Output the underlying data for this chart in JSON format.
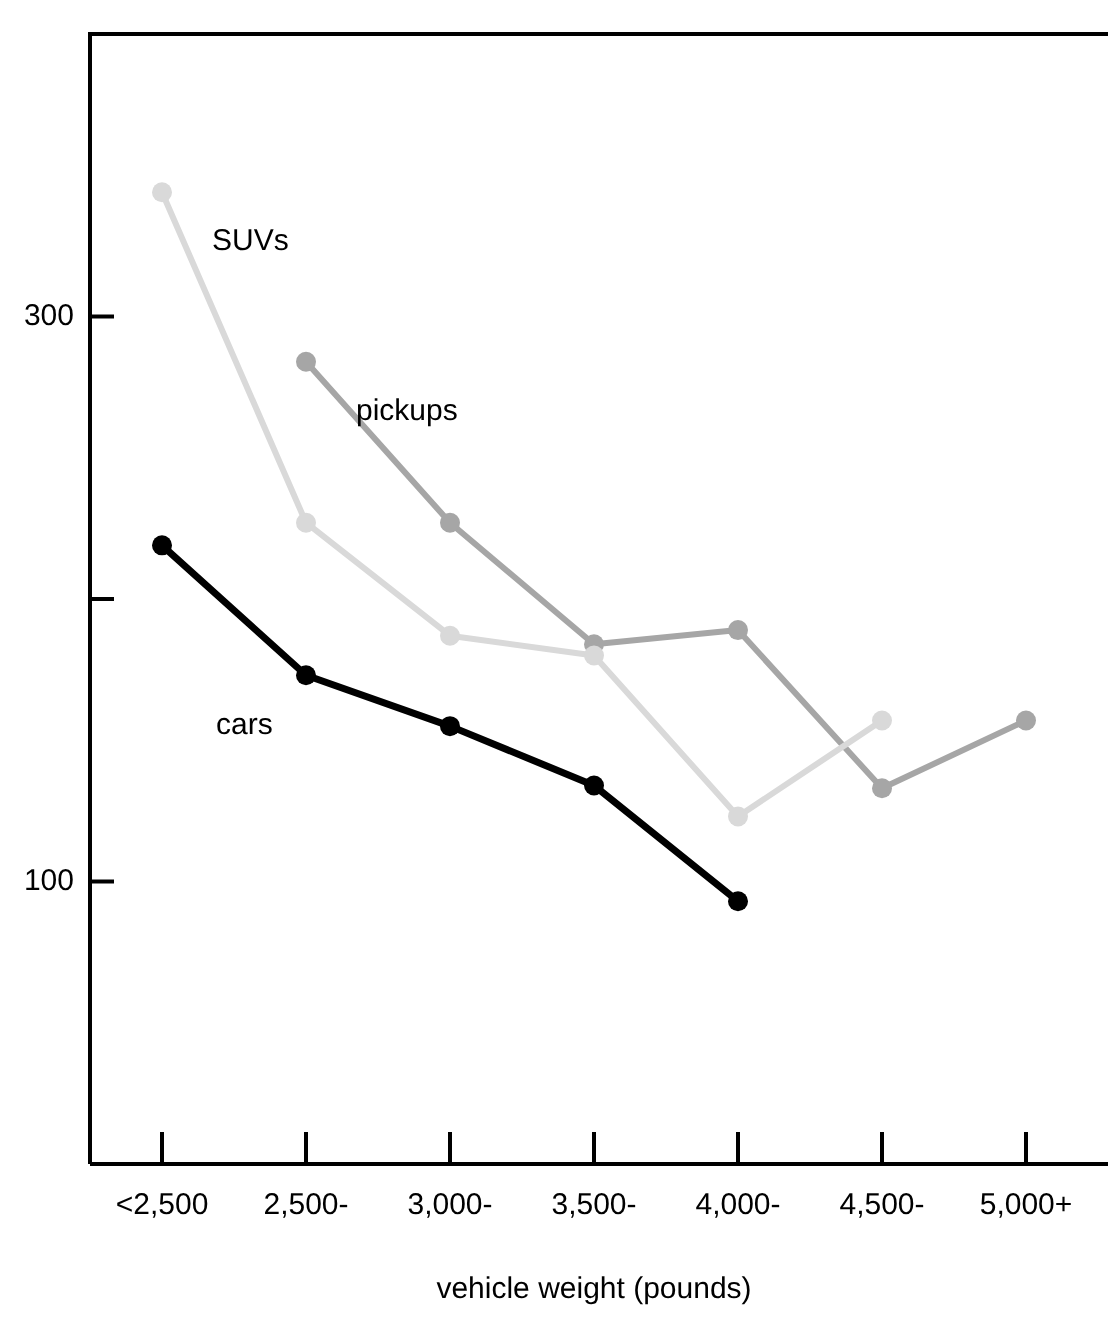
{
  "chart_data": {
    "type": "line",
    "xlabel": "vehicle weight (pounds)",
    "categories": [
      "<2,500",
      "2,500-",
      "3,000-",
      "3,500-",
      "4,000-",
      "4,500-",
      "5,000+"
    ],
    "series": [
      {
        "name": "SUVs",
        "color": "#d9d9d9",
        "values": [
          344,
          227,
          187,
          180,
          123,
          157,
          null
        ]
      },
      {
        "name": "pickups",
        "color": "#a6a6a6",
        "values": [
          null,
          284,
          227,
          184,
          189,
          133,
          157
        ]
      },
      {
        "name": "cars",
        "color": "#000000",
        "values": [
          219,
          173,
          155,
          134,
          93,
          null,
          null
        ]
      }
    ],
    "ylim": [
      0,
      400
    ],
    "yticks": [
      100,
      {
        "value": 200,
        "label": null
      },
      300
    ],
    "grid": false,
    "legend": false,
    "marker": "circle",
    "line_style": "solid"
  }
}
